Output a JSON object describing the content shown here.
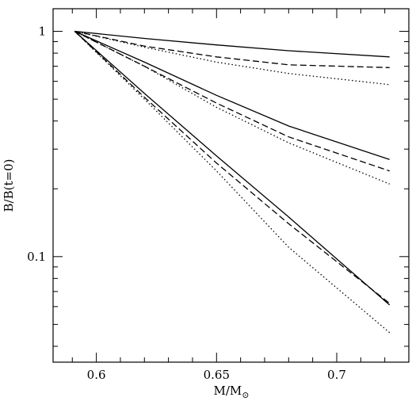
{
  "chart_data": {
    "type": "line",
    "xlabel": "M/M",
    "xlabel_subscript": "⊙",
    "ylabel": "B/B(t=0)",
    "xlim": [
      0.582,
      0.73
    ],
    "ylim": [
      0.034,
      1.26
    ],
    "yscale": "log",
    "xticks_major": [
      0.6,
      0.65,
      0.7
    ],
    "xtick_labels": [
      "0.6",
      "0.65",
      "0.7"
    ],
    "xticks_minor": [
      0.59,
      0.61,
      0.62,
      0.63,
      0.64,
      0.66,
      0.67,
      0.68,
      0.69,
      0.71,
      0.72
    ],
    "yticks_major": [
      0.1,
      1
    ],
    "ytick_labels": [
      "0.1",
      "1"
    ],
    "yticks_minor": [
      0.04,
      0.05,
      0.06,
      0.07,
      0.08,
      0.09,
      0.2,
      0.3,
      0.4,
      0.5,
      0.6,
      0.7,
      0.8,
      0.9
    ],
    "grid": false,
    "series": [
      {
        "style": "solid",
        "x": [
          0.591,
          0.62,
          0.65,
          0.68,
          0.722
        ],
        "y": [
          1.0,
          0.93,
          0.87,
          0.82,
          0.77
        ]
      },
      {
        "style": "dashed",
        "x": [
          0.591,
          0.62,
          0.65,
          0.68,
          0.722
        ],
        "y": [
          1.0,
          0.86,
          0.77,
          0.71,
          0.69
        ]
      },
      {
        "style": "dotted",
        "x": [
          0.591,
          0.62,
          0.65,
          0.68,
          0.722
        ],
        "y": [
          1.0,
          0.85,
          0.73,
          0.65,
          0.58
        ]
      },
      {
        "style": "solid",
        "x": [
          0.591,
          0.62,
          0.65,
          0.68,
          0.722
        ],
        "y": [
          1.0,
          0.73,
          0.52,
          0.38,
          0.27
        ]
      },
      {
        "style": "dashed",
        "x": [
          0.591,
          0.62,
          0.65,
          0.68,
          0.722
        ],
        "y": [
          1.0,
          0.7,
          0.48,
          0.34,
          0.24
        ]
      },
      {
        "style": "dotted",
        "x": [
          0.591,
          0.62,
          0.65,
          0.68,
          0.722
        ],
        "y": [
          1.0,
          0.7,
          0.46,
          0.32,
          0.21
        ]
      },
      {
        "style": "solid",
        "x": [
          0.591,
          0.62,
          0.65,
          0.68,
          0.722
        ],
        "y": [
          1.0,
          0.53,
          0.28,
          0.15,
          0.061
        ]
      },
      {
        "style": "dashed",
        "x": [
          0.591,
          0.62,
          0.65,
          0.68,
          0.722
        ],
        "y": [
          1.0,
          0.51,
          0.26,
          0.14,
          0.062
        ]
      },
      {
        "style": "dotted",
        "x": [
          0.591,
          0.62,
          0.65,
          0.68,
          0.722
        ],
        "y": [
          1.0,
          0.5,
          0.24,
          0.11,
          0.046
        ]
      }
    ]
  }
}
